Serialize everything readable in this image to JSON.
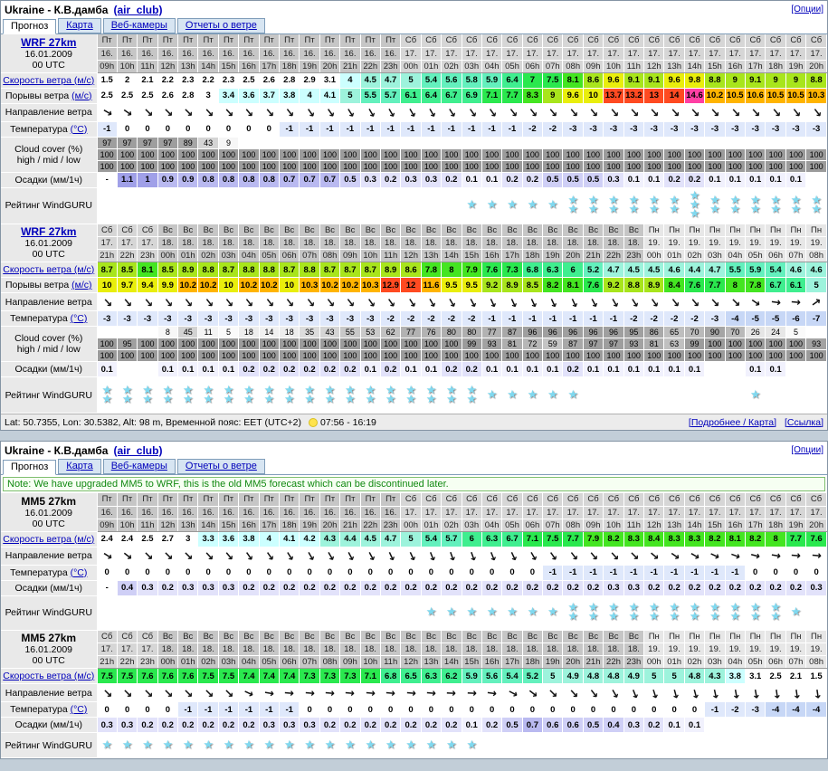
{
  "spot": {
    "name": "Ukraine - К.В.дамба",
    "club": "(air_club)"
  },
  "options_label": "[Опции]",
  "tabs": [
    "Прогноз",
    "Карта",
    "Веб-камеры",
    "Отчеты о ветре"
  ],
  "note": "Note: We have upgraded MM5 to WRF, this is the old MM5 forecast which can be discontinued later.",
  "footer": {
    "info": "Lat: 50.7355, Lon: 30.5382, Alt: 98 m, Временной пояс: EET (UTC+2)",
    "sun": "07:56 - 16:19",
    "links": [
      "[Подробнее / Карта]",
      "[Ссылка]"
    ]
  },
  "row_labels": {
    "speed_pre": "",
    "speed_link": "Скорость ветра (м/с)",
    "gust_pre": "Порывы ветра ",
    "gust_link": "(м/с)",
    "dir": "Направление ветра",
    "temp_pre": "Температура ",
    "temp_link": "(°C)",
    "cloud1": "Cloud cover (%)",
    "cloud2": "high / mid / low",
    "precip": "Осадки (мм/1ч)",
    "rating": "Рейтинг WindGURU"
  },
  "day_colors": {
    "Пт": "#c6c6c6",
    "Сб": "#d6d6d6",
    "Вс": "#c6c6c6",
    "Пн": "#e7e7e7"
  },
  "colors": {
    "star": "#7fd9f0",
    "link": "#0000bb",
    "note_green": "#118811",
    "temp_neg": "#dfe8fb",
    "temp_very_neg": "#c7d7f6",
    "wind_scale": [
      [
        3.3,
        ""
      ],
      [
        4.3,
        "#ccffff"
      ],
      [
        5.1,
        "#9df3dc"
      ],
      [
        6.0,
        "#63f0bd"
      ],
      [
        7.0,
        "#3fee8f"
      ],
      [
        7.8,
        "#2ae84e"
      ],
      [
        8.5,
        "#44e521"
      ],
      [
        9.4,
        "#a8e51c"
      ],
      [
        10.1,
        "#e9ee0c"
      ],
      [
        11.9,
        "#ffb400"
      ],
      [
        14.3,
        "#ff4a21"
      ],
      [
        999,
        "#ff3fa4"
      ]
    ],
    "precip_scale": [
      [
        0.15,
        "#f1f1fd"
      ],
      [
        0.35,
        "#e2e2fa"
      ],
      [
        0.65,
        "#cfcff6"
      ],
      [
        0.95,
        "#b9b9f0"
      ],
      [
        999,
        "#a0a0e8"
      ]
    ]
  },
  "columns": {
    "a": {
      "days": [
        "Пт",
        "Пт",
        "Пт",
        "Пт",
        "Пт",
        "Пт",
        "Пт",
        "Пт",
        "Пт",
        "Пт",
        "Пт",
        "Пт",
        "Пт",
        "Пт",
        "Пт",
        "Сб",
        "Сб",
        "Сб",
        "Сб",
        "Сб",
        "Сб",
        "Сб",
        "Сб",
        "Сб",
        "Сб",
        "Сб",
        "Сб",
        "Сб",
        "Сб",
        "Сб",
        "Сб",
        "Сб",
        "Сб",
        "Сб",
        "Сб",
        "Сб"
      ],
      "dates": [
        "16.",
        "16.",
        "16.",
        "16.",
        "16.",
        "16.",
        "16.",
        "16.",
        "16.",
        "16.",
        "16.",
        "16.",
        "16.",
        "16.",
        "16.",
        "17.",
        "17.",
        "17.",
        "17.",
        "17.",
        "17.",
        "17.",
        "17.",
        "17.",
        "17.",
        "17.",
        "17.",
        "17.",
        "17.",
        "17.",
        "17.",
        "17.",
        "17.",
        "17.",
        "17.",
        "17."
      ],
      "hours": [
        "09h",
        "10h",
        "11h",
        "12h",
        "13h",
        "14h",
        "15h",
        "16h",
        "17h",
        "18h",
        "19h",
        "20h",
        "21h",
        "22h",
        "23h",
        "00h",
        "01h",
        "02h",
        "03h",
        "04h",
        "05h",
        "06h",
        "07h",
        "08h",
        "09h",
        "10h",
        "11h",
        "12h",
        "13h",
        "14h",
        "15h",
        "16h",
        "17h",
        "18h",
        "19h",
        "20h"
      ]
    },
    "b": {
      "days": [
        "Сб",
        "Сб",
        "Сб",
        "Вс",
        "Вс",
        "Вс",
        "Вс",
        "Вс",
        "Вс",
        "Вс",
        "Вс",
        "Вс",
        "Вс",
        "Вс",
        "Вс",
        "Вс",
        "Вс",
        "Вс",
        "Вс",
        "Вс",
        "Вс",
        "Вс",
        "Вс",
        "Вс",
        "Вс",
        "Вс",
        "Вс",
        "Пн",
        "Пн",
        "Пн",
        "Пн",
        "Пн",
        "Пн",
        "Пн",
        "Пн",
        "Пн"
      ],
      "dates": [
        "17.",
        "17.",
        "17.",
        "18.",
        "18.",
        "18.",
        "18.",
        "18.",
        "18.",
        "18.",
        "18.",
        "18.",
        "18.",
        "18.",
        "18.",
        "18.",
        "18.",
        "18.",
        "18.",
        "18.",
        "18.",
        "18.",
        "18.",
        "18.",
        "18.",
        "18.",
        "18.",
        "19.",
        "19.",
        "19.",
        "19.",
        "19.",
        "19.",
        "19.",
        "19.",
        "19."
      ],
      "hours": [
        "21h",
        "22h",
        "23h",
        "00h",
        "01h",
        "02h",
        "03h",
        "04h",
        "05h",
        "06h",
        "07h",
        "08h",
        "09h",
        "10h",
        "11h",
        "12h",
        "13h",
        "14h",
        "15h",
        "16h",
        "17h",
        "18h",
        "19h",
        "20h",
        "21h",
        "22h",
        "23h",
        "00h",
        "01h",
        "02h",
        "03h",
        "04h",
        "05h",
        "06h",
        "07h",
        "08h"
      ]
    }
  },
  "tables": [
    {
      "panel": 0,
      "model": "WRF 27km",
      "model_link": true,
      "date": "16.01.2009",
      "utc": "00 UTC",
      "cols": "a",
      "rating_height": 40,
      "speed": [
        1.5,
        2,
        2.1,
        2.2,
        2.3,
        2.2,
        2.3,
        2.5,
        2.6,
        2.8,
        2.9,
        3.1,
        4,
        4.5,
        4.7,
        5,
        5.4,
        5.6,
        5.8,
        5.9,
        6.4,
        7,
        7.5,
        8.1,
        8.6,
        9.6,
        9.1,
        9.1,
        9.6,
        9.8,
        8.8,
        9,
        9.1,
        9,
        9,
        8.8
      ],
      "gusts": [
        2.5,
        2.5,
        2.5,
        2.6,
        2.8,
        3,
        3.4,
        3.6,
        3.7,
        3.8,
        4,
        4.1,
        5,
        5.5,
        5.7,
        6.1,
        6.4,
        6.7,
        6.9,
        7.1,
        7.7,
        8.3,
        9,
        9.6,
        10,
        13.7,
        13.2,
        13,
        14,
        14.6,
        10.2,
        10.5,
        10.6,
        10.5,
        10.5,
        10.3
      ],
      "dir": [
        30,
        35,
        45,
        45,
        45,
        48,
        48,
        50,
        50,
        52,
        55,
        55,
        58,
        60,
        60,
        60,
        60,
        58,
        55,
        55,
        52,
        52,
        50,
        50,
        50,
        50,
        48,
        48,
        48,
        48,
        48,
        48,
        48,
        50,
        52,
        52
      ],
      "temp": [
        -1,
        0,
        0,
        0,
        0,
        0,
        0,
        0,
        0,
        -1,
        -1,
        -1,
        -1,
        -1,
        -1,
        -1,
        -1,
        -1,
        -1,
        -1,
        -1,
        -2,
        -2,
        -3,
        -3,
        -3,
        -3,
        -3,
        -3,
        -3,
        -3,
        -3,
        -3,
        -3,
        -3,
        -3
      ],
      "cloud_high": [
        97,
        97,
        97,
        97,
        89,
        43,
        9,
        "",
        "",
        "",
        "",
        "",
        "",
        "",
        "",
        "",
        "",
        "",
        "",
        "",
        "",
        "",
        "",
        "",
        "",
        "",
        "",
        "",
        "",
        "",
        "",
        "",
        "",
        "",
        "",
        ""
      ],
      "cloud_mid": [
        100,
        100,
        100,
        100,
        100,
        100,
        100,
        100,
        100,
        100,
        100,
        100,
        100,
        100,
        100,
        100,
        100,
        100,
        100,
        100,
        100,
        100,
        100,
        100,
        100,
        100,
        100,
        100,
        100,
        100,
        100,
        100,
        100,
        100,
        100,
        100
      ],
      "cloud_low": [
        100,
        100,
        100,
        100,
        100,
        100,
        100,
        100,
        100,
        100,
        100,
        100,
        100,
        100,
        100,
        100,
        100,
        100,
        100,
        100,
        100,
        100,
        100,
        100,
        100,
        100,
        100,
        100,
        100,
        100,
        100,
        100,
        100,
        100,
        100,
        100
      ],
      "precip": [
        "-",
        1.1,
        1,
        0.9,
        0.9,
        0.8,
        0.8,
        0.8,
        0.8,
        0.7,
        0.7,
        0.7,
        0.5,
        0.3,
        0.2,
        0.3,
        0.3,
        0.2,
        0.1,
        0.1,
        0.2,
        0.2,
        0.5,
        0.5,
        0.5,
        0.3,
        0.1,
        0.1,
        0.2,
        0.2,
        0.1,
        0.1,
        0.1,
        0.1,
        0.1,
        ""
      ],
      "rating": [
        0,
        0,
        0,
        0,
        0,
        0,
        0,
        0,
        0,
        0,
        0,
        0,
        0,
        0,
        0,
        0,
        0,
        0,
        1,
        1,
        1,
        1,
        1,
        2,
        2,
        2,
        2,
        2,
        2,
        3,
        2,
        2,
        2,
        2,
        2,
        2
      ]
    },
    {
      "panel": 0,
      "model": "WRF 27km",
      "model_link": true,
      "date": "16.01.2009",
      "utc": "00 UTC",
      "cols": "b",
      "rating_height": 40,
      "speed": [
        8.7,
        8.5,
        8.1,
        8.5,
        8.9,
        8.8,
        8.7,
        8.8,
        8.8,
        8.7,
        8.8,
        8.7,
        8.7,
        8.7,
        8.9,
        8.6,
        7.8,
        8,
        7.9,
        7.6,
        7.3,
        6.8,
        6.3,
        6,
        5.2,
        4.7,
        4.5,
        4.5,
        4.6,
        4.4,
        4.7,
        5.5,
        5.9,
        5.4,
        4.6,
        4.6
      ],
      "gusts": [
        10,
        9.7,
        9.4,
        9.9,
        10.2,
        10.2,
        10,
        10.2,
        10.2,
        10,
        10.3,
        10.2,
        10.2,
        10.3,
        12.9,
        12,
        11.6,
        9.5,
        9.5,
        9.2,
        8.9,
        8.5,
        8.2,
        8.1,
        7.6,
        9.2,
        8.8,
        8.9,
        8.4,
        7.6,
        7.7,
        8,
        7.8,
        6.7,
        6.1,
        5
      ],
      "dir": [
        48,
        50,
        50,
        52,
        52,
        52,
        52,
        52,
        52,
        52,
        52,
        52,
        52,
        55,
        55,
        58,
        60,
        60,
        62,
        65,
        65,
        65,
        65,
        65,
        62,
        60,
        58,
        55,
        52,
        50,
        48,
        45,
        35,
        8,
        5,
        -35
      ],
      "temp": [
        -3,
        -3,
        -3,
        -3,
        -3,
        -3,
        -3,
        -3,
        -3,
        -3,
        -3,
        -3,
        -3,
        -3,
        -2,
        -2,
        -2,
        -2,
        -2,
        -1,
        -1,
        -1,
        -1,
        -1,
        -1,
        -1,
        -2,
        -2,
        -2,
        -2,
        -3,
        -4,
        -5,
        -5,
        -6,
        -7
      ],
      "cloud_high": [
        "",
        "",
        "",
        8,
        45,
        11,
        5,
        18,
        14,
        18,
        35,
        43,
        55,
        53,
        62,
        77,
        76,
        80,
        80,
        77,
        87,
        96,
        96,
        96,
        96,
        96,
        95,
        86,
        65,
        70,
        90,
        70,
        26,
        24,
        5,
        ""
      ],
      "cloud_mid": [
        100,
        95,
        100,
        100,
        100,
        100,
        100,
        100,
        100,
        100,
        100,
        100,
        100,
        100,
        100,
        100,
        100,
        100,
        99,
        93,
        81,
        72,
        59,
        87,
        97,
        97,
        93,
        81,
        63,
        99,
        100,
        100,
        100,
        100,
        100,
        93
      ],
      "cloud_low": [
        100,
        100,
        100,
        100,
        100,
        100,
        100,
        100,
        100,
        100,
        100,
        100,
        100,
        100,
        100,
        100,
        100,
        100,
        100,
        100,
        100,
        100,
        100,
        100,
        100,
        100,
        100,
        100,
        100,
        100,
        100,
        100,
        100,
        100,
        100,
        100
      ],
      "precip": [
        0.1,
        "",
        "",
        0.1,
        0.1,
        0.1,
        0.1,
        0.2,
        0.2,
        0.2,
        0.2,
        0.2,
        0.2,
        0.1,
        0.2,
        0.1,
        0.1,
        0.2,
        0.2,
        0.1,
        0.1,
        0.1,
        0.1,
        0.2,
        0.1,
        0.1,
        0.1,
        0.1,
        0.1,
        0.1,
        "",
        "",
        0.1,
        0.1,
        "",
        ""
      ],
      "rating": [
        2,
        2,
        2,
        2,
        2,
        2,
        2,
        2,
        2,
        2,
        2,
        2,
        2,
        2,
        2,
        2,
        2,
        2,
        2,
        1,
        1,
        1,
        1,
        1,
        0,
        0,
        0,
        0,
        0,
        0,
        0,
        0,
        1,
        0,
        0,
        0
      ]
    },
    {
      "panel": 1,
      "model": "MM5 27km",
      "model_link": false,
      "date": "16.01.2009",
      "utc": "00 UTC",
      "cols": "a",
      "rating_height": 38,
      "speed": [
        2.4,
        2.4,
        2.5,
        2.7,
        3,
        3.3,
        3.6,
        3.8,
        4,
        4.1,
        4.2,
        4.3,
        4.4,
        4.5,
        4.7,
        5,
        5.4,
        5.7,
        6,
        6.3,
        6.7,
        7.1,
        7.5,
        7.7,
        7.9,
        8.2,
        8.3,
        8.4,
        8.3,
        8.3,
        8.2,
        8.1,
        8.2,
        8,
        7.7,
        7.6
      ],
      "dir": [
        32,
        38,
        45,
        45,
        45,
        48,
        50,
        55,
        55,
        58,
        60,
        60,
        62,
        62,
        65,
        65,
        68,
        70,
        70,
        68,
        65,
        60,
        55,
        52,
        50,
        48,
        45,
        40,
        35,
        30,
        25,
        20,
        15,
        10,
        5,
        5
      ],
      "temp": [
        0,
        0,
        0,
        0,
        0,
        0,
        0,
        0,
        0,
        0,
        0,
        0,
        0,
        0,
        0,
        0,
        0,
        0,
        0,
        0,
        0,
        0,
        -1,
        -1,
        -1,
        -1,
        -1,
        -1,
        -1,
        -1,
        -1,
        -1,
        0,
        0,
        0,
        0
      ],
      "precip": [
        "-",
        0.4,
        0.3,
        0.2,
        0.3,
        0.3,
        0.3,
        0.2,
        0.2,
        0.2,
        0.2,
        0.2,
        0.2,
        0.2,
        0.2,
        0.2,
        0.2,
        0.2,
        0.2,
        0.2,
        0.2,
        0.2,
        0.2,
        0.2,
        0.2,
        0.3,
        0.3,
        0.2,
        0.2,
        0.2,
        0.2,
        0.2,
        0.2,
        0.2,
        0.2,
        0.3
      ],
      "rating": [
        0,
        0,
        0,
        0,
        0,
        0,
        0,
        0,
        0,
        0,
        0,
        0,
        0,
        0,
        0,
        0,
        1,
        1,
        1,
        1,
        1,
        1,
        1,
        2,
        2,
        2,
        2,
        2,
        2,
        2,
        2,
        2,
        2,
        2,
        1,
        0
      ]
    },
    {
      "panel": 1,
      "model": "MM5 27km",
      "model_link": false,
      "date": "16.01.2009",
      "utc": "00 UTC",
      "cols": "b",
      "rating_height": 28,
      "speed": [
        7.5,
        7.5,
        7.6,
        7.6,
        7.6,
        7.5,
        7.5,
        7.4,
        7.4,
        7.4,
        7.3,
        7.3,
        7.3,
        7.1,
        6.8,
        6.5,
        6.3,
        6.2,
        5.9,
        5.6,
        5.4,
        5.2,
        5,
        4.9,
        4.8,
        4.8,
        4.9,
        5,
        5,
        4.8,
        4.3,
        3.8,
        3.1,
        2.5,
        2.1,
        1.5
      ],
      "dir": [
        45,
        45,
        45,
        45,
        45,
        45,
        45,
        25,
        10,
        5,
        5,
        5,
        5,
        5,
        5,
        5,
        5,
        3,
        3,
        8,
        28,
        38,
        45,
        48,
        52,
        60,
        68,
        72,
        75,
        75,
        78,
        80,
        80,
        82,
        82,
        82
      ],
      "temp": [
        0,
        0,
        0,
        0,
        -1,
        -1,
        -1,
        -1,
        -1,
        -1,
        0,
        0,
        0,
        0,
        0,
        0,
        0,
        0,
        0,
        0,
        0,
        0,
        0,
        0,
        0,
        0,
        0,
        0,
        0,
        0,
        -1,
        -2,
        -3,
        -4,
        -4,
        -4
      ],
      "precip": [
        0.3,
        0.3,
        0.2,
        0.2,
        0.2,
        0.2,
        0.2,
        0.2,
        0.3,
        0.3,
        0.3,
        0.2,
        0.2,
        0.2,
        0.2,
        0.2,
        0.2,
        0.2,
        0.1,
        0.2,
        0.5,
        0.7,
        0.6,
        0.6,
        0.5,
        0.4,
        0.3,
        0.2,
        0.1,
        0.1,
        "",
        "",
        "",
        "",
        "",
        ""
      ],
      "rating": [
        1,
        1,
        1,
        1,
        1,
        1,
        1,
        1,
        1,
        1,
        1,
        1,
        1,
        1,
        1,
        1,
        1,
        1,
        1,
        0,
        0,
        0,
        0,
        0,
        0,
        0,
        0,
        0,
        0,
        0,
        0,
        0,
        0,
        0,
        0,
        0
      ]
    }
  ]
}
